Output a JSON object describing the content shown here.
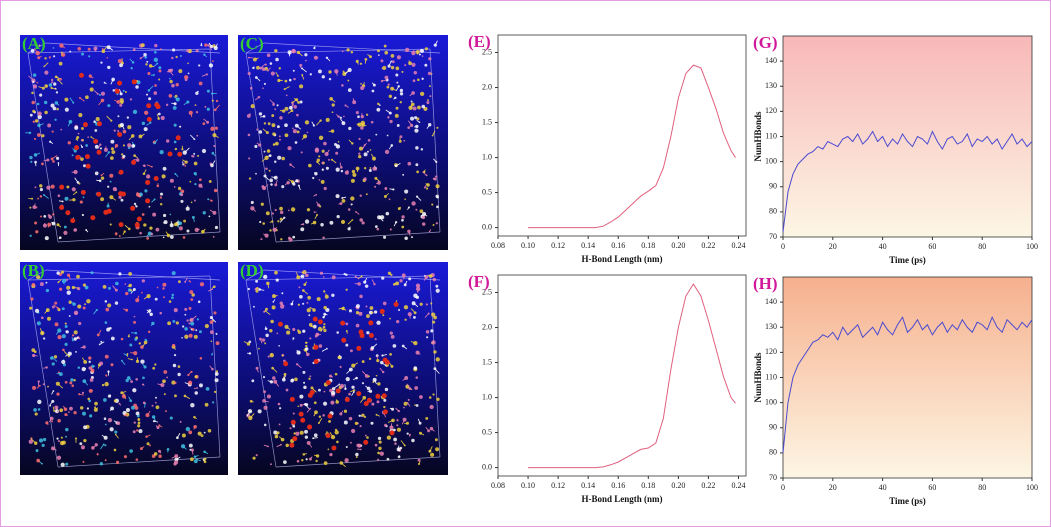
{
  "panels": [
    {
      "label": "(A)"
    },
    {
      "label": "(B)"
    },
    {
      "label": "(C)"
    },
    {
      "label": "(D)"
    }
  ],
  "chart_data": [
    {
      "type": "line",
      "panel_label": "(E)",
      "x_label": "H-Bond Length (nm)",
      "color": "#e0607e",
      "x": [
        0.1,
        0.105,
        0.11,
        0.115,
        0.12,
        0.125,
        0.13,
        0.135,
        0.14,
        0.145,
        0.15,
        0.155,
        0.16,
        0.165,
        0.17,
        0.175,
        0.18,
        0.185,
        0.19,
        0.195,
        0.2,
        0.205,
        0.21,
        0.215,
        0.22,
        0.225,
        0.23,
        0.235,
        0.238
      ],
      "values": [
        0,
        0,
        0,
        0,
        0,
        0,
        0,
        0,
        0,
        0,
        0.02,
        0.08,
        0.15,
        0.25,
        0.35,
        0.45,
        0.52,
        0.6,
        0.85,
        1.3,
        1.85,
        2.2,
        2.32,
        2.28,
        2.0,
        1.7,
        1.35,
        1.1,
        1.0
      ],
      "xlim": [
        0.08,
        0.245
      ],
      "ylim": [
        -0.12,
        2.75
      ],
      "xticks": [
        0.08,
        {
          "value": 0.1,
          "label": "0.10"
        },
        0.12,
        0.14,
        0.16,
        0.18,
        {
          "value": 0.2,
          "label": "0.20"
        },
        0.22,
        0.24
      ],
      "yticks": [
        {
          "value": 0,
          "label": "0.0"
        },
        0.5,
        {
          "value": 1,
          "label": "1.0"
        },
        1.5,
        {
          "value": 2,
          "label": "2.0"
        },
        2.5
      ]
    },
    {
      "type": "line",
      "panel_label": "(F)",
      "x_label": "H-Bond Length (nm)",
      "color": "#e0607e",
      "x": [
        0.1,
        0.105,
        0.11,
        0.115,
        0.12,
        0.125,
        0.13,
        0.135,
        0.14,
        0.145,
        0.15,
        0.155,
        0.16,
        0.165,
        0.17,
        0.175,
        0.18,
        0.185,
        0.19,
        0.195,
        0.2,
        0.205,
        0.21,
        0.215,
        0.22,
        0.225,
        0.23,
        0.235,
        0.238
      ],
      "values": [
        0,
        0,
        0,
        0,
        0,
        0,
        0,
        0,
        0,
        0,
        0.01,
        0.04,
        0.08,
        0.14,
        0.2,
        0.26,
        0.28,
        0.35,
        0.7,
        1.4,
        2.0,
        2.45,
        2.62,
        2.45,
        2.1,
        1.7,
        1.3,
        1.0,
        0.92
      ],
      "xlim": [
        0.08,
        0.245
      ],
      "ylim": [
        -0.12,
        2.75
      ],
      "xticks": [
        0.08,
        {
          "value": 0.1,
          "label": "0.10"
        },
        0.12,
        0.14,
        0.16,
        0.18,
        {
          "value": 0.2,
          "label": "0.20"
        },
        0.22,
        0.24
      ],
      "yticks": [
        {
          "value": 0,
          "label": "0.0"
        },
        0.5,
        {
          "value": 1,
          "label": "1.0"
        },
        1.5,
        {
          "value": 2,
          "label": "2.0"
        },
        2.5
      ]
    },
    {
      "type": "line",
      "panel_label": "(G)",
      "x_label": "Time (ps)",
      "y_label": "NumHBonds",
      "color": "#4a4ad0",
      "x": [
        0,
        2,
        4,
        6,
        8,
        10,
        12,
        14,
        16,
        18,
        20,
        22,
        24,
        26,
        28,
        30,
        32,
        34,
        36,
        38,
        40,
        42,
        44,
        46,
        48,
        50,
        52,
        54,
        56,
        58,
        60,
        62,
        64,
        66,
        68,
        70,
        72,
        74,
        76,
        78,
        80,
        82,
        84,
        86,
        88,
        90,
        92,
        94,
        96,
        98,
        100
      ],
      "values": [
        72,
        88,
        95,
        99,
        101,
        103,
        104,
        106,
        105,
        108,
        107,
        106,
        109,
        110,
        108,
        111,
        107,
        109,
        112,
        108,
        110,
        106,
        109,
        107,
        111,
        108,
        106,
        110,
        109,
        107,
        112,
        108,
        105,
        109,
        110,
        107,
        108,
        111,
        106,
        109,
        108,
        110,
        107,
        109,
        105,
        108,
        111,
        107,
        109,
        106,
        108
      ],
      "xlim": [
        0,
        100
      ],
      "ylim": [
        70,
        150
      ],
      "xticks": [
        0,
        20,
        40,
        60,
        80,
        100
      ],
      "yticks": [
        70,
        80,
        90,
        100,
        110,
        120,
        130,
        140
      ]
    },
    {
      "type": "line",
      "panel_label": "(H)",
      "x_label": "Time (ps)",
      "y_label": "NumHBonds",
      "color": "#4a4ad0",
      "x": [
        0,
        2,
        4,
        6,
        8,
        10,
        12,
        14,
        16,
        18,
        20,
        22,
        24,
        26,
        28,
        30,
        32,
        34,
        36,
        38,
        40,
        42,
        44,
        46,
        48,
        50,
        52,
        54,
        56,
        58,
        60,
        62,
        64,
        66,
        68,
        70,
        72,
        74,
        76,
        78,
        80,
        82,
        84,
        86,
        88,
        90,
        92,
        94,
        96,
        98,
        100
      ],
      "values": [
        80,
        100,
        110,
        115,
        118,
        121,
        124,
        125,
        127,
        126,
        128,
        125,
        130,
        127,
        129,
        131,
        126,
        128,
        130,
        127,
        132,
        129,
        127,
        131,
        134,
        128,
        130,
        133,
        129,
        131,
        127,
        130,
        132,
        128,
        131,
        129,
        133,
        130,
        128,
        132,
        131,
        129,
        134,
        130,
        128,
        133,
        131,
        129,
        132,
        130,
        133
      ],
      "xlim": [
        0,
        100
      ],
      "ylim": [
        70,
        150
      ],
      "xticks": [
        0,
        20,
        40,
        60,
        80,
        100
      ],
      "yticks": [
        70,
        80,
        90,
        100,
        110,
        120,
        130,
        140
      ]
    }
  ]
}
